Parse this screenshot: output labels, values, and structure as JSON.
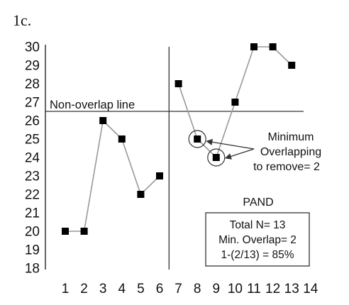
{
  "panel_label": "1c.",
  "chart_data": {
    "type": "line",
    "x_ticks": [
      "1",
      "2",
      "3",
      "4",
      "5",
      "6",
      "7",
      "8",
      "9",
      "10",
      "11",
      "12",
      "13",
      "14"
    ],
    "y_ticks": [
      "18",
      "19",
      "20",
      "21",
      "22",
      "23",
      "24",
      "25",
      "26",
      "27",
      "28",
      "29",
      "30"
    ],
    "xlim": [
      0.5,
      14
    ],
    "ylim": [
      18,
      30
    ],
    "phase_change_x": 6.5,
    "series": [
      {
        "x": [
          1,
          2,
          3,
          4,
          5,
          6
        ],
        "y": [
          20,
          20,
          26,
          25,
          22,
          23
        ]
      },
      {
        "x": [
          7,
          8,
          9,
          10,
          11,
          12,
          13
        ],
        "y": [
          28,
          25,
          24,
          27,
          30,
          30,
          29
        ]
      }
    ],
    "non_overlap_line": {
      "y": 26.5,
      "label": "Non-overlap line"
    },
    "circled_points": [
      {
        "x": 8,
        "y": 25
      },
      {
        "x": 9,
        "y": 24
      }
    ],
    "annotation": [
      "Minimum",
      "Overlapping",
      "to remove= 2"
    ],
    "method_label": "PAND",
    "summary_box": [
      "Total N= 13",
      "Min. Overlap= 2",
      "1-(2/13) = 85%"
    ],
    "grid": false,
    "colors": {
      "line": "#999999",
      "marker": "#000000",
      "axis": "#333333"
    }
  }
}
